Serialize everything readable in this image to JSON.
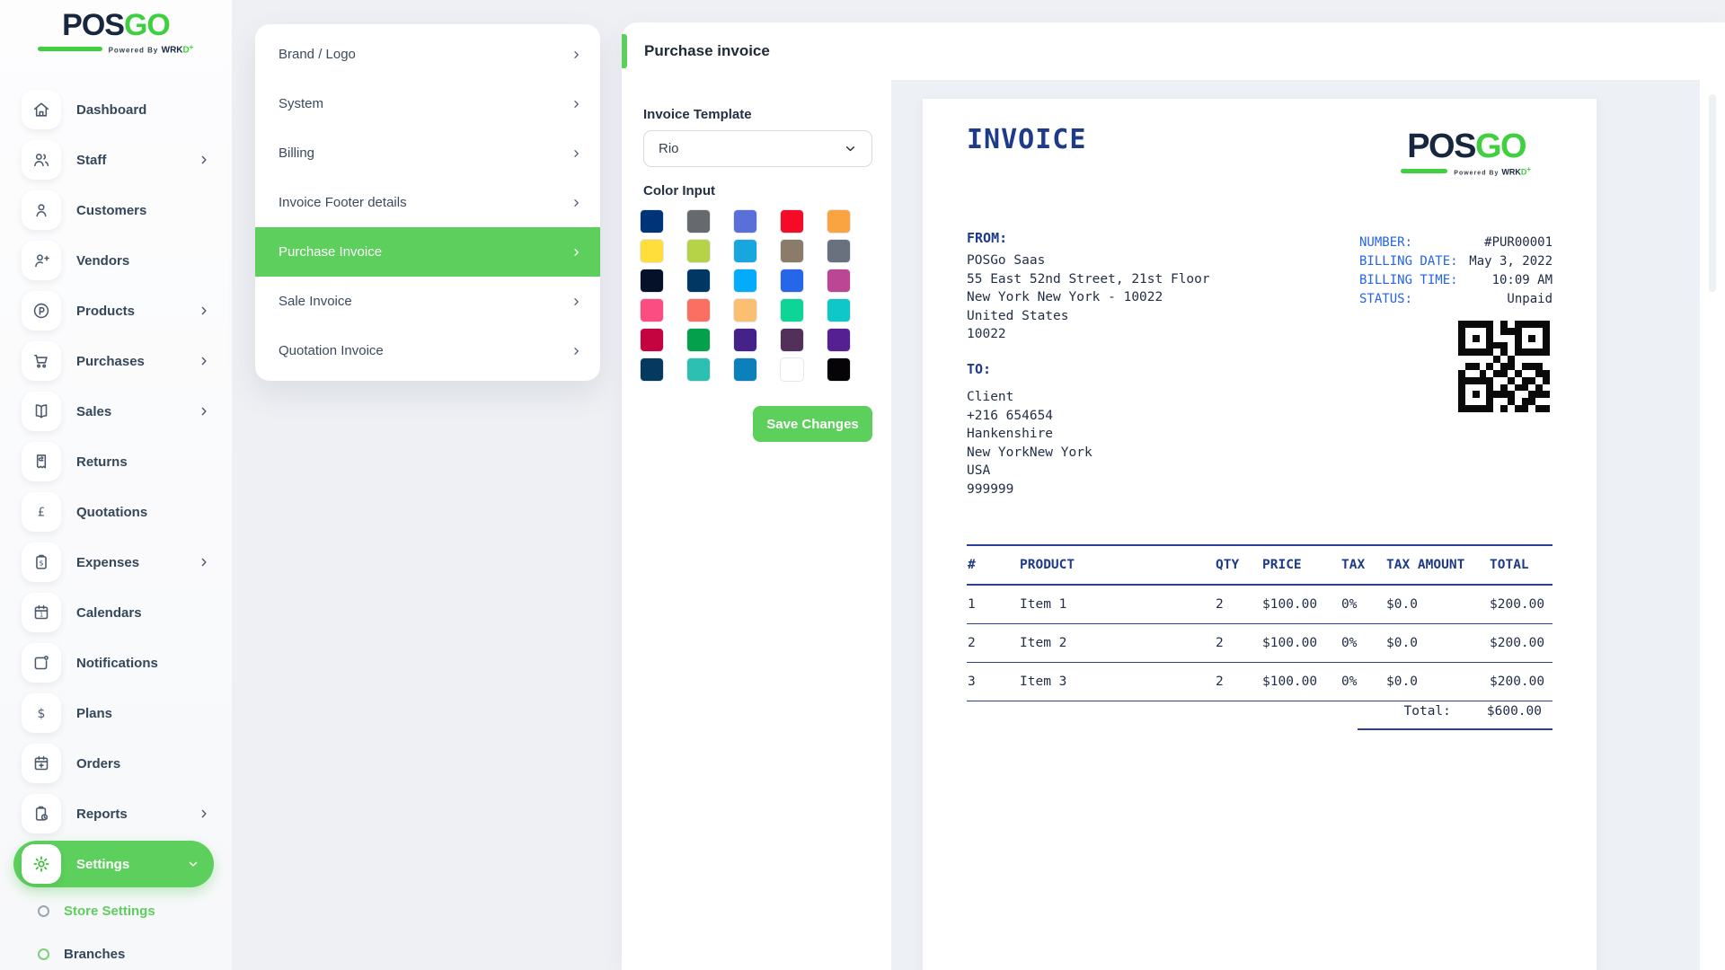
{
  "colors": {
    "accent": "#5ccf5c",
    "logo_navy": "#17273f",
    "logo_green": "#3ed03e",
    "invoice_blue": "#1e3a8a",
    "invoice_bright_blue": "#2563eb",
    "invoice_line": "#2b3f93",
    "invoice_text": "#232f45"
  },
  "brand": {
    "name_primary": "POS",
    "name_secondary": "GO",
    "tagline_prefix": "Powered By",
    "tagline_w": "W",
    "tagline_mid": "RK",
    "tagline_end": "D",
    "tagline_plus": "+"
  },
  "sidebar": {
    "items": [
      {
        "label": "Dashboard",
        "icon": "home",
        "chevron": false,
        "active": false
      },
      {
        "label": "Staff",
        "icon": "users",
        "chevron": true,
        "active": false
      },
      {
        "label": "Customers",
        "icon": "user",
        "chevron": false,
        "active": false
      },
      {
        "label": "Vendors",
        "icon": "user-plus",
        "chevron": false,
        "active": false
      },
      {
        "label": "Products",
        "icon": "circle-p",
        "chevron": true,
        "active": false
      },
      {
        "label": "Purchases",
        "icon": "cart",
        "chevron": true,
        "active": false
      },
      {
        "label": "Sales",
        "icon": "book",
        "chevron": true,
        "active": false
      },
      {
        "label": "Returns",
        "icon": "receipt-return",
        "chevron": false,
        "active": false
      },
      {
        "label": "Quotations",
        "icon": "pound",
        "chevron": false,
        "active": false
      },
      {
        "label": "Expenses",
        "icon": "clipboard-dollar",
        "chevron": true,
        "active": false
      },
      {
        "label": "Calendars",
        "icon": "calendar",
        "chevron": false,
        "active": false
      },
      {
        "label": "Notifications",
        "icon": "screen-dot",
        "chevron": false,
        "active": false
      },
      {
        "label": "Plans",
        "icon": "dollar",
        "chevron": false,
        "active": false
      },
      {
        "label": "Orders",
        "icon": "calendar-plus",
        "chevron": false,
        "active": false
      },
      {
        "label": "Reports",
        "icon": "clipboard-clock",
        "chevron": true,
        "active": false
      },
      {
        "label": "Settings",
        "icon": "gear",
        "chevron": true,
        "active": true
      }
    ],
    "subitems": [
      {
        "label": "Store Settings",
        "active": true
      },
      {
        "label": "Branches",
        "active": false
      }
    ]
  },
  "settings_menu": {
    "items": [
      {
        "label": "Brand / Logo"
      },
      {
        "label": "System"
      },
      {
        "label": "Billing"
      },
      {
        "label": "Invoice Footer details"
      },
      {
        "label": "Purchase Invoice"
      },
      {
        "label": "Sale Invoice"
      },
      {
        "label": "Quotation Invoice"
      }
    ],
    "active_index": 4
  },
  "main": {
    "title": "Purchase invoice",
    "template_label": "Invoice Template",
    "template_value": "Rio",
    "color_label": "Color Input",
    "save_label": "Save Changes",
    "swatches": [
      "#003478",
      "#666a6e",
      "#5b6fd9",
      "#f30b28",
      "#f9a440",
      "#ffdd3a",
      "#b6d246",
      "#17a6de",
      "#8b7b69",
      "#69707e",
      "#041129",
      "#003763",
      "#05abfb",
      "#2666e8",
      "#bb4693",
      "#fb4d80",
      "#fb6f63",
      "#fbbf71",
      "#0dd598",
      "#0fc6c8",
      "#c40440",
      "#05a04b",
      "#45218a",
      "#53305a",
      "#552091",
      "#06395f",
      "#2dc0b2",
      "#0b80ba",
      "#ffffff",
      "#060407"
    ]
  },
  "invoice": {
    "title": "INVOICE",
    "from_label": "FROM:",
    "from_lines": [
      "POSGo Saas",
      "55 East 52nd Street, 21st Floor",
      "New York New York - 10022",
      "United States",
      "10022"
    ],
    "to_label": "TO:",
    "to_lines": [
      "Client",
      "+216 654654",
      "Hankenshire",
      "New YorkNew York",
      "USA",
      "999999"
    ],
    "meta": [
      {
        "label": "NUMBER:",
        "value": "#PUR00001"
      },
      {
        "label": "BILLING DATE:",
        "value": "May 3, 2022"
      },
      {
        "label": "BILLING TIME:",
        "value": "10:09 AM"
      },
      {
        "label": "STATUS:",
        "value": "Unpaid"
      }
    ],
    "table": {
      "columns": [
        "#",
        "PRODUCT",
        "QTY",
        "PRICE",
        "TAX",
        "TAX AMOUNT",
        "TOTAL"
      ],
      "rows": [
        [
          "1",
          "Item 1",
          "2",
          "$100.00",
          "0%",
          "$0.0",
          "$200.00"
        ],
        [
          "2",
          "Item 2",
          "2",
          "$100.00",
          "0%",
          "$0.0",
          "$200.00"
        ],
        [
          "3",
          "Item 3",
          "2",
          "$100.00",
          "0%",
          "$0.0",
          "$200.00"
        ]
      ],
      "total_label": "Total:",
      "total_value": "$600.00"
    },
    "qr_matrix": [
      "1111101011111",
      "1000101110001",
      "1010100010101",
      "1000111010001",
      "1111101011111",
      "0000010100000",
      "0110101101110",
      "1001011010011",
      "1111100101101",
      "1000101011010",
      "1010111100111",
      "1000100101100",
      "1111101011011"
    ]
  }
}
